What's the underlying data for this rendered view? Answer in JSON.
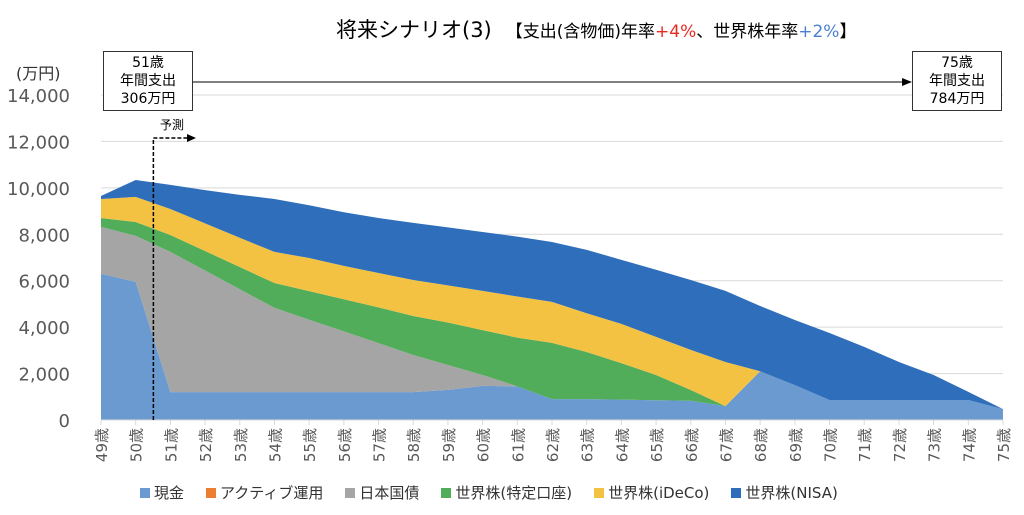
{
  "chart_data": {
    "type": "area",
    "stacked": true,
    "title": "将来シナリオ(3)",
    "subtitle_parts": [
      "【支出(含物価)年率",
      "+4%",
      "、世界株年率",
      "+2%",
      "】"
    ],
    "ylabel": "(万円)",
    "ylim": [
      0,
      14000
    ],
    "yticks": [
      0,
      2000,
      4000,
      6000,
      8000,
      10000,
      12000,
      14000
    ],
    "ytick_labels": [
      "0",
      "2,000",
      "4,000",
      "6,000",
      "8,000",
      "10,000",
      "12,000",
      "14,000"
    ],
    "grid": true,
    "legend_position": "bottom",
    "categories": [
      "49歳",
      "50歳",
      "51歳",
      "52歳",
      "53歳",
      "54歳",
      "55歳",
      "56歳",
      "57歳",
      "58歳",
      "59歳",
      "60歳",
      "61歳",
      "62歳",
      "63歳",
      "64歳",
      "65歳",
      "66歳",
      "67歳",
      "68歳",
      "69歳",
      "70歳",
      "71歳",
      "72歳",
      "73歳",
      "74歳",
      "75歳"
    ],
    "series": [
      {
        "name": "現金",
        "color": "#6a9ad0",
        "values": [
          6300,
          5950,
          1200,
          1200,
          1200,
          1200,
          1200,
          1200,
          1200,
          1200,
          1300,
          1470,
          1450,
          900,
          900,
          880,
          850,
          830,
          600,
          2100,
          1500,
          860,
          860,
          860,
          860,
          860,
          470
        ]
      },
      {
        "name": "アクティブ運用",
        "color": "#ed7d31",
        "values": [
          0,
          0,
          0,
          0,
          0,
          0,
          0,
          0,
          0,
          0,
          0,
          0,
          0,
          0,
          0,
          0,
          0,
          0,
          0,
          0,
          0,
          0,
          0,
          0,
          0,
          0,
          0
        ]
      },
      {
        "name": "日本国債",
        "color": "#a5a5a5",
        "values": [
          2020,
          1980,
          6040,
          5240,
          4430,
          3630,
          3120,
          2620,
          2110,
          1600,
          1070,
          470,
          0,
          0,
          0,
          0,
          0,
          0,
          0,
          0,
          0,
          0,
          0,
          0,
          0,
          0,
          0
        ]
      },
      {
        "name": "世界株(特定口座)",
        "color": "#52ad5a",
        "values": [
          380,
          600,
          730,
          840,
          960,
          1070,
          1230,
          1380,
          1540,
          1680,
          1830,
          1930,
          2100,
          2420,
          2030,
          1570,
          1090,
          460,
          0,
          0,
          0,
          0,
          0,
          0,
          0,
          0,
          0
        ]
      },
      {
        "name": "世界株(iDeCo)",
        "color": "#f4c242",
        "values": [
          820,
          1080,
          1120,
          1190,
          1260,
          1340,
          1430,
          1440,
          1480,
          1550,
          1600,
          1690,
          1770,
          1770,
          1670,
          1690,
          1640,
          1730,
          1900,
          0,
          0,
          0,
          0,
          0,
          0,
          0,
          0
        ]
      },
      {
        "name": "世界株(NISA)",
        "color": "#2e6eba",
        "values": [
          130,
          730,
          1040,
          1430,
          1850,
          2280,
          2270,
          2310,
          2370,
          2460,
          2500,
          2540,
          2580,
          2580,
          2730,
          2760,
          2890,
          3010,
          3060,
          2810,
          2810,
          2890,
          2290,
          1640,
          1080,
          350,
          0
        ]
      }
    ],
    "annotations": {
      "start_box": [
        "51歳",
        "年間支出",
        "306万円"
      ],
      "end_box": [
        "75歳",
        "年間支出",
        "784万円"
      ],
      "forecast_label": "予測",
      "forecast_start_category": "51歳"
    }
  }
}
